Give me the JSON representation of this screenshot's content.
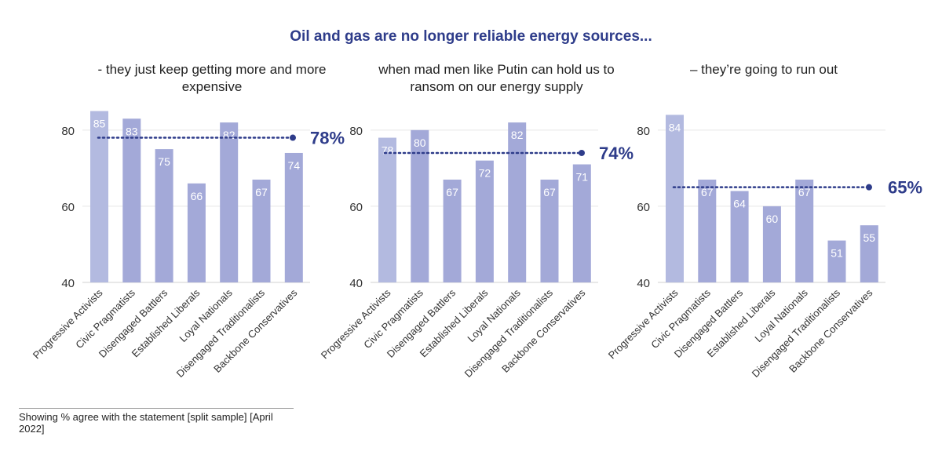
{
  "title": "Oil and gas are no longer reliable energy sources...",
  "footnote": "Showing % agree with the statement [split sample] [April 2022]",
  "colors": {
    "bar_light": "#b3bae0",
    "bar": "#a3a9d8",
    "avg": "#2e3c8a",
    "title": "#2e3c8a"
  },
  "chart_data": [
    {
      "type": "bar",
      "title": "- they just keep getting more and more expensive",
      "categories": [
        "Progressive Activists",
        "Civic Pragmatists",
        "Disengaged Battlers",
        "Established Liberals",
        "Loyal Nationals",
        "Disengaged Traditionalists",
        "Backbone Conservatives"
      ],
      "values": [
        85,
        83,
        75,
        66,
        82,
        67,
        74
      ],
      "average": 78,
      "average_label": "78%",
      "yticks": [
        40,
        60,
        80
      ],
      "ylim": [
        40,
        88
      ]
    },
    {
      "type": "bar",
      "title": "when mad men like Putin can hold us to ransom on our energy supply",
      "categories": [
        "Progressive Activists",
        "Civic Pragmatists",
        "Disengaged Battlers",
        "Established Liberals",
        "Loyal Nationals",
        "Disengaged Traditionalists",
        "Backbone Conservatives"
      ],
      "values": [
        78,
        80,
        67,
        72,
        82,
        67,
        71
      ],
      "average": 74,
      "average_label": "74%",
      "yticks": [
        40,
        60,
        80
      ],
      "ylim": [
        40,
        88
      ]
    },
    {
      "type": "bar",
      "title": "– they’re going to run out",
      "categories": [
        "Progressive Activists",
        "Civic Pragmatists",
        "Disengaged Battlers",
        "Established Liberals",
        "Loyal Nationals",
        "Disengaged Traditionalists",
        "Backbone Conservatives"
      ],
      "values": [
        84,
        67,
        64,
        60,
        67,
        51,
        55
      ],
      "average": 65,
      "average_label": "65%",
      "yticks": [
        40,
        60,
        80
      ],
      "ylim": [
        40,
        88
      ]
    }
  ]
}
